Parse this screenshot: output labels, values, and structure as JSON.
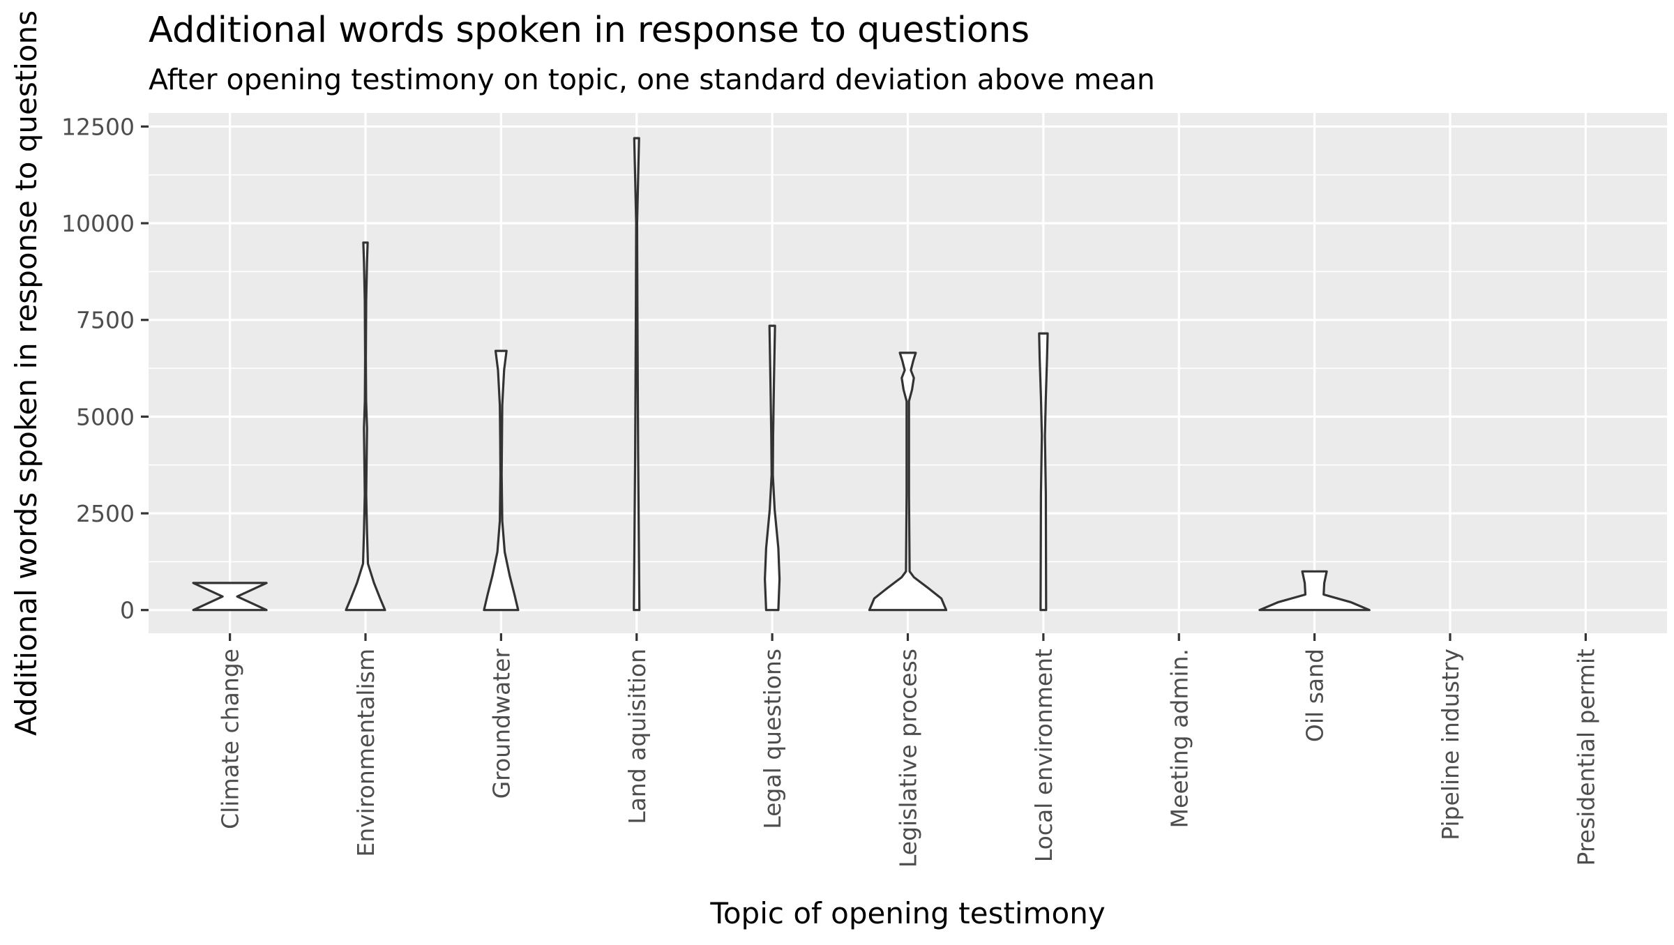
{
  "chart_data": {
    "type": "violin",
    "title": "Additional words spoken in response to questions",
    "subtitle": "After opening testimony on topic,  one standard deviation above mean",
    "xlabel": "Topic of opening testimony",
    "ylabel": "Additional words spoken in response to questions",
    "categories": [
      "Climate change",
      "Environmentalism",
      "Groundwater",
      "Land aquisition",
      "Legal questions",
      "Legislative process",
      "Local environment",
      "Meeting admin.",
      "Oil sand",
      "Pipeline industry",
      "Presidential permit"
    ],
    "yticks": [
      0,
      2500,
      5000,
      7500,
      10000,
      12500
    ],
    "ylim": [
      -600,
      12850
    ],
    "grid": true,
    "background": "#ebebeb",
    "violins": [
      {
        "category": "Climate change",
        "profile": [
          [
            0,
            0.6
          ],
          [
            350,
            0.12
          ],
          [
            700,
            0.6
          ]
        ]
      },
      {
        "category": "Environmentalism",
        "profile": [
          [
            0,
            0.32
          ],
          [
            300,
            0.24
          ],
          [
            700,
            0.14
          ],
          [
            1200,
            0.04
          ],
          [
            2000,
            0.025
          ],
          [
            3000,
            0.012
          ],
          [
            4000,
            0.02
          ],
          [
            4700,
            0.025
          ],
          [
            5400,
            0.01
          ],
          [
            6500,
            0.006
          ],
          [
            8000,
            0.012
          ],
          [
            9000,
            0.025
          ],
          [
            9500,
            0.035
          ]
        ]
      },
      {
        "category": "Groundwater",
        "profile": [
          [
            0,
            0.28
          ],
          [
            400,
            0.22
          ],
          [
            900,
            0.14
          ],
          [
            1500,
            0.06
          ],
          [
            2300,
            0.02
          ],
          [
            3500,
            0.01
          ],
          [
            4500,
            0.015
          ],
          [
            5300,
            0.02
          ],
          [
            6200,
            0.05
          ],
          [
            6700,
            0.09
          ]
        ]
      },
      {
        "category": "Land aquisition",
        "profile": [
          [
            0,
            0.045
          ],
          [
            2000,
            0.035
          ],
          [
            4000,
            0.025
          ],
          [
            6000,
            0.018
          ],
          [
            8000,
            0.012
          ],
          [
            10000,
            0.008
          ],
          [
            12200,
            0.04
          ]
        ]
      },
      {
        "category": "Legal questions",
        "profile": [
          [
            0,
            0.1
          ],
          [
            800,
            0.12
          ],
          [
            1600,
            0.1
          ],
          [
            2600,
            0.04
          ],
          [
            3500,
            0.01
          ],
          [
            4500,
            0.015
          ],
          [
            6000,
            0.03
          ],
          [
            7350,
            0.045
          ]
        ]
      },
      {
        "category": "Legislative process",
        "profile": [
          [
            0,
            0.63
          ],
          [
            300,
            0.55
          ],
          [
            550,
            0.35
          ],
          [
            850,
            0.1
          ],
          [
            1000,
            0.03
          ],
          [
            3000,
            0.02
          ],
          [
            5400,
            0.02
          ],
          [
            5700,
            0.07
          ],
          [
            6000,
            0.1
          ],
          [
            6200,
            0.05
          ],
          [
            6450,
            0.09
          ],
          [
            6650,
            0.13
          ]
        ]
      },
      {
        "category": "Local environment",
        "profile": [
          [
            0,
            0.045
          ],
          [
            3000,
            0.04
          ],
          [
            4500,
            0.025
          ],
          [
            5500,
            0.04
          ],
          [
            6500,
            0.06
          ],
          [
            7150,
            0.07
          ]
        ]
      },
      {
        "category": "Meeting admin.",
        "profile": []
      },
      {
        "category": "Oil sand",
        "profile": [
          [
            0,
            0.9
          ],
          [
            200,
            0.6
          ],
          [
            400,
            0.15
          ],
          [
            700,
            0.16
          ],
          [
            1000,
            0.2
          ]
        ]
      },
      {
        "category": "Pipeline industry",
        "profile": []
      },
      {
        "category": "Presidential permit",
        "profile": []
      }
    ]
  }
}
